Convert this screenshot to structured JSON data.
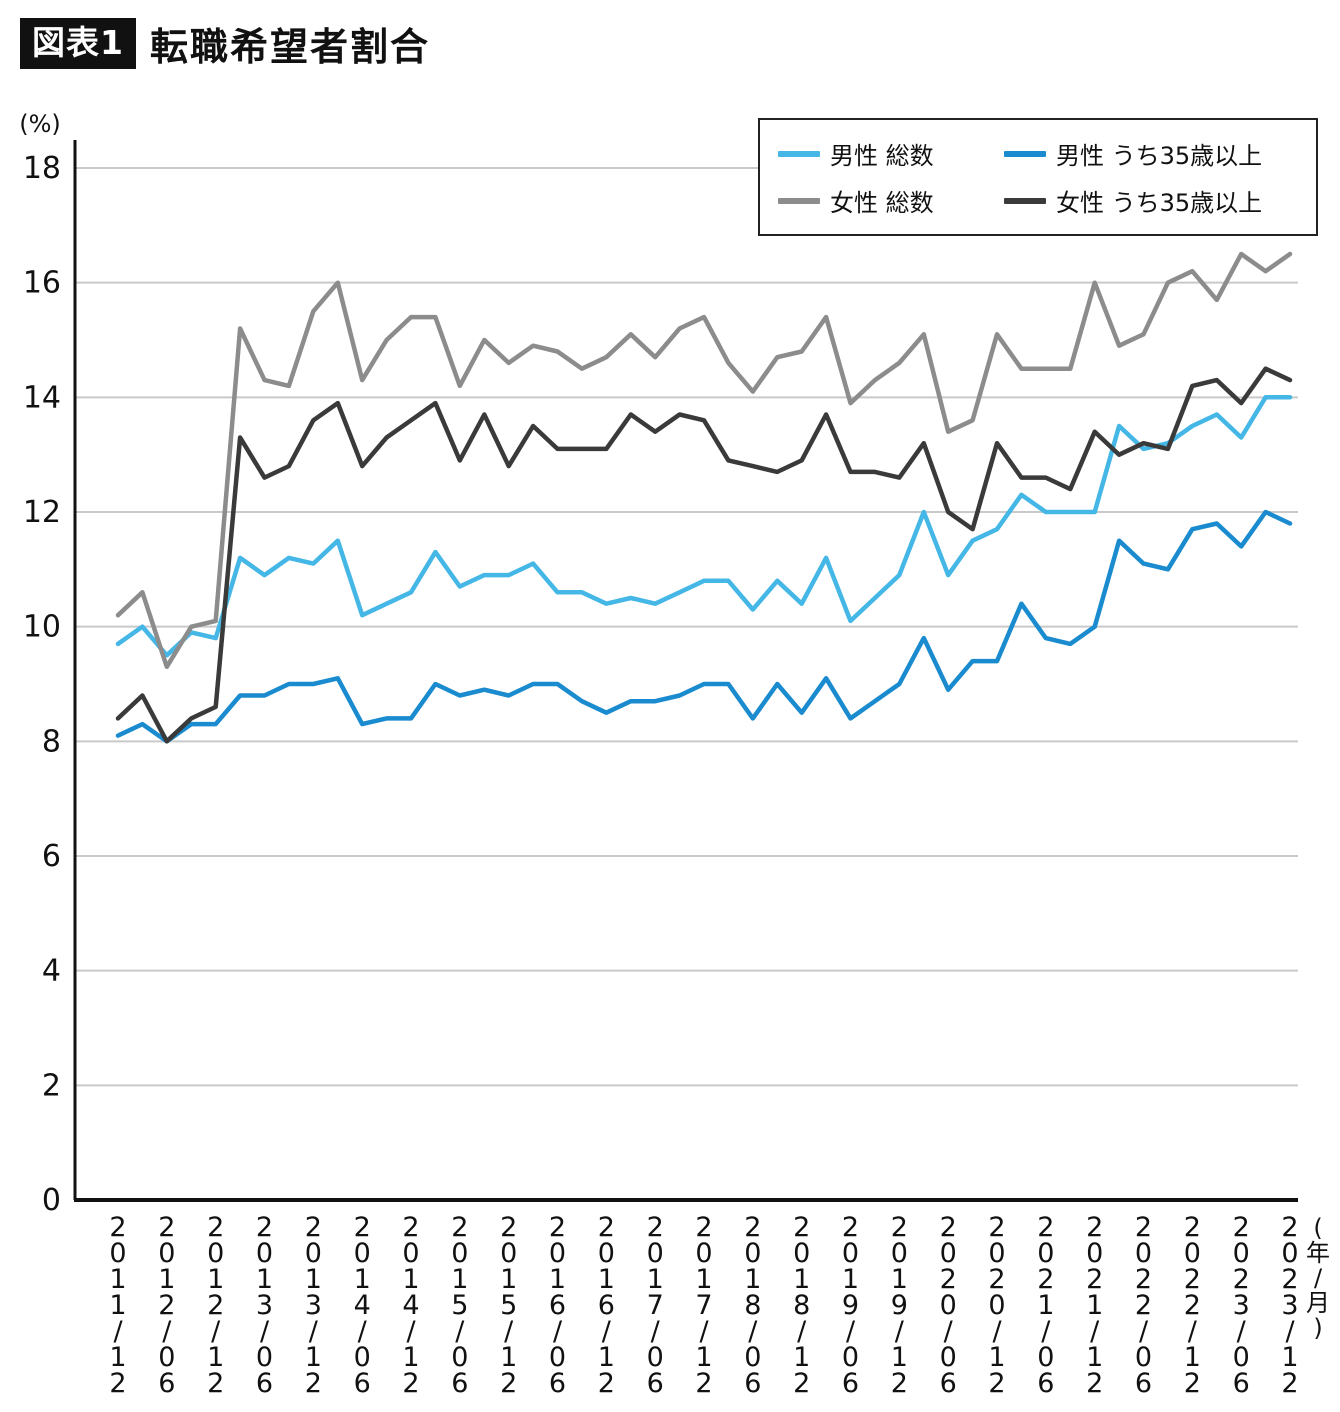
{
  "header": {
    "badge": "図表1",
    "title": "転職希望者割合"
  },
  "chart_data": {
    "type": "line",
    "title": "転職希望者割合",
    "y_unit": "(%)",
    "x_unit": "(年/月)",
    "ylim": [
      0,
      18
    ],
    "y_ticks": [
      0,
      2,
      4,
      6,
      8,
      10,
      12,
      14,
      16,
      18
    ],
    "grid": true,
    "legend_position": "top-right",
    "x_tick_every": 2,
    "x_tick_labels": [
      "2011/12",
      "2012/06",
      "2012/12",
      "2013/06",
      "2013/12",
      "2014/06",
      "2014/12",
      "2015/06",
      "2015/12",
      "2016/06",
      "2016/12",
      "2017/06",
      "2017/12",
      "2018/06",
      "2018/12",
      "2019/06",
      "2019/12",
      "2020/06",
      "2020/12",
      "2021/06",
      "2021/12",
      "2022/06",
      "2022/12",
      "2023/06",
      "2023/12"
    ],
    "series": [
      {
        "name": "男性 総数",
        "color": "#45b7e6",
        "values": [
          9.7,
          10.0,
          9.5,
          9.9,
          9.8,
          11.2,
          10.9,
          11.2,
          11.1,
          11.5,
          10.2,
          10.4,
          10.6,
          11.3,
          10.7,
          10.9,
          10.9,
          11.1,
          10.6,
          10.6,
          10.4,
          10.5,
          10.4,
          10.6,
          10.8,
          10.8,
          10.3,
          10.8,
          10.4,
          11.2,
          10.1,
          10.5,
          10.9,
          12.0,
          10.9,
          11.5,
          11.7,
          12.3,
          12.0,
          12.0,
          12.0,
          13.5,
          13.1,
          13.2,
          13.5,
          13.7,
          13.3,
          14.0,
          14.0
        ]
      },
      {
        "name": "男性 うち35歳以上",
        "color": "#1a8bcf",
        "values": [
          8.1,
          8.3,
          8.0,
          8.3,
          8.3,
          8.8,
          8.8,
          9.0,
          9.0,
          9.1,
          8.3,
          8.4,
          8.4,
          9.0,
          8.8,
          8.9,
          8.8,
          9.0,
          9.0,
          8.7,
          8.5,
          8.7,
          8.7,
          8.8,
          9.0,
          9.0,
          8.4,
          9.0,
          8.5,
          9.1,
          8.4,
          8.7,
          9.0,
          9.8,
          8.9,
          9.4,
          9.4,
          10.4,
          9.8,
          9.7,
          10.0,
          11.5,
          11.1,
          11.0,
          11.7,
          11.8,
          11.4,
          12.0,
          11.8
        ]
      },
      {
        "name": "女性 総数",
        "color": "#8c8c8c",
        "values": [
          10.2,
          10.6,
          9.3,
          10.0,
          10.1,
          15.2,
          14.3,
          14.2,
          15.5,
          16.0,
          14.3,
          15.0,
          15.4,
          15.4,
          14.2,
          15.0,
          14.6,
          14.9,
          14.8,
          14.5,
          14.7,
          15.1,
          14.7,
          15.2,
          15.4,
          14.6,
          14.1,
          14.7,
          14.8,
          15.4,
          13.9,
          14.3,
          14.6,
          15.1,
          13.4,
          13.6,
          15.1,
          14.5,
          14.5,
          14.5,
          16.0,
          14.9,
          15.1,
          16.0,
          16.2,
          15.7,
          16.5,
          16.2,
          16.5
        ]
      },
      {
        "name": "女性 うち35歳以上",
        "color": "#3a3a3a",
        "values": [
          8.4,
          8.8,
          8.0,
          8.4,
          8.6,
          13.3,
          12.6,
          12.8,
          13.6,
          13.9,
          12.8,
          13.3,
          13.6,
          13.9,
          12.9,
          13.7,
          12.8,
          13.5,
          13.1,
          13.1,
          13.1,
          13.7,
          13.4,
          13.7,
          13.6,
          12.9,
          12.8,
          12.7,
          12.9,
          13.7,
          12.7,
          12.7,
          12.6,
          13.2,
          12.0,
          11.7,
          13.2,
          12.6,
          12.6,
          12.4,
          13.4,
          13.0,
          13.2,
          13.1,
          14.2,
          14.3,
          13.9,
          14.5,
          14.3
        ]
      }
    ]
  }
}
